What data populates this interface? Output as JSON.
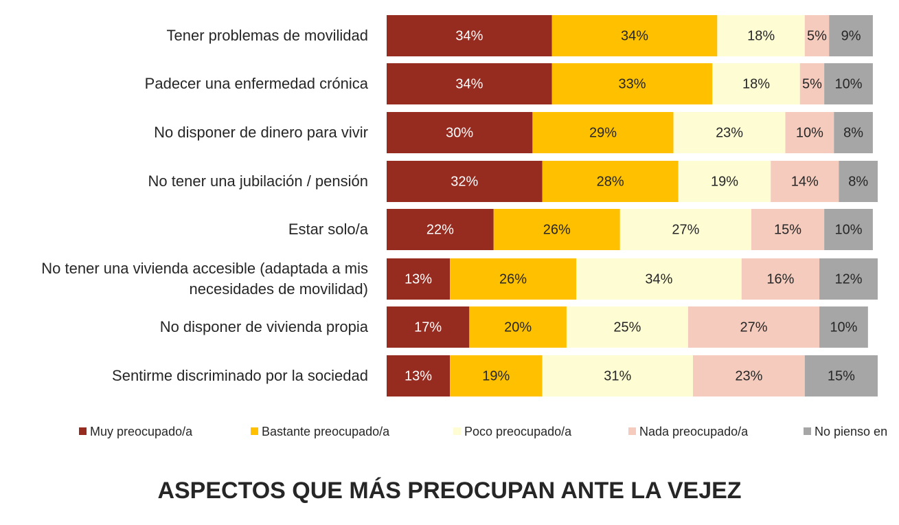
{
  "chart_data": {
    "type": "stacked_bar_horizontal",
    "title": "ASPECTOS QUE MÁS PREOCUPAN ANTE LA VEJEZ",
    "categories": [
      "Tener problemas de movilidad",
      "Padecer una enfermedad crónica",
      "No disponer de dinero para vivir",
      "No tener una jubilación / pensión",
      "Estar solo/a",
      "No tener una vivienda accesible (adaptada a mis necesidades de movilidad)",
      "No disponer de vivienda propia",
      "Sentirme discriminado por la sociedad"
    ],
    "series": [
      {
        "name": "Muy preocupado/a",
        "color": "#962b20",
        "values": [
          34,
          34,
          30,
          32,
          22,
          13,
          17,
          13
        ],
        "value_labels": [
          "34%",
          "34%",
          "30%",
          "32%",
          "22%",
          "13%",
          "17%",
          "13%"
        ]
      },
      {
        "name": "Bastante preocupado/a",
        "color": "#ffc000",
        "values": [
          34,
          33,
          29,
          28,
          26,
          26,
          20,
          19
        ],
        "value_labels": [
          "34%",
          "33%",
          "29%",
          "28%",
          "26%",
          "26%",
          "20%",
          "19%"
        ]
      },
      {
        "name": "Poco preocupado/a",
        "color": "#fefcd3",
        "values": [
          18,
          18,
          23,
          19,
          27,
          34,
          25,
          31
        ],
        "value_labels": [
          "18%",
          "18%",
          "23%",
          "19%",
          "27%",
          "34%",
          "25%",
          "31%"
        ]
      },
      {
        "name": "Nada preocupado/a",
        "color": "#f4cbbd",
        "values": [
          5,
          5,
          10,
          14,
          15,
          16,
          27,
          23
        ],
        "value_labels": [
          "5%",
          "5%",
          "10%",
          "14%",
          "15%",
          "16%",
          "27%",
          "23%"
        ]
      },
      {
        "name": "No pienso en",
        "color": "#a6a6a6",
        "values": [
          9,
          10,
          8,
          8,
          10,
          12,
          10,
          15
        ],
        "value_labels": [
          "9%",
          "10%",
          "8%",
          "8%",
          "10%",
          "12%",
          "10%",
          "15%"
        ]
      }
    ]
  }
}
